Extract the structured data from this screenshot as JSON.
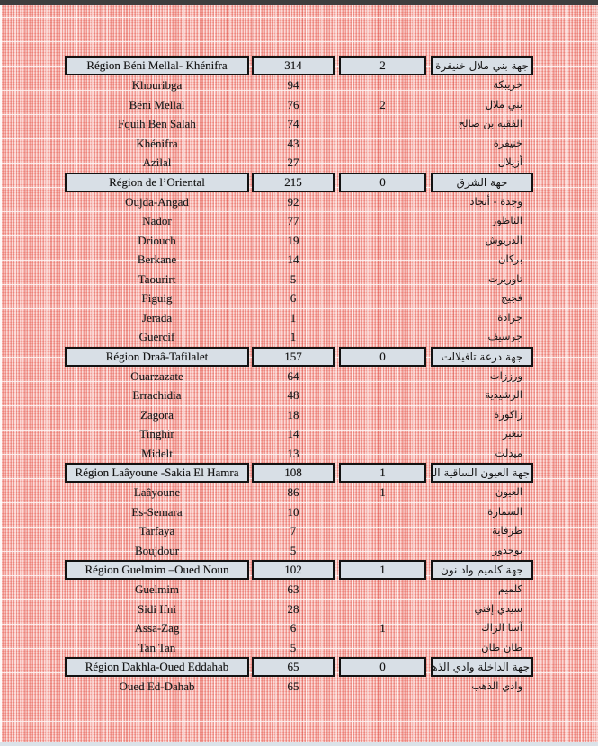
{
  "page": {
    "kind": "scanned statistics table page",
    "colors": {
      "pattern_pink": "#f4aba6",
      "pattern_red_line": "#d54338",
      "top_bar": "#3e3e3e",
      "bottom_bar": "#dbe3e9",
      "header_cell_fill": "#d8dfe6",
      "header_cell_border": "#121212",
      "text": "#1d1d1d"
    }
  },
  "table": {
    "sections": [
      {
        "region": {
          "name_fr": "Région Béni Mellal- Khénifra",
          "value1": "314",
          "value2": "2",
          "name_ar": "جهة بني ملال خنيفرة"
        },
        "rows": [
          {
            "name_fr": "Khouribga",
            "value1": "94",
            "value2": "",
            "name_ar": "خريبكة"
          },
          {
            "name_fr": "Béni Mellal",
            "value1": "76",
            "value2": "2",
            "name_ar": "بني ملال"
          },
          {
            "name_fr": "Fquih Ben Salah",
            "value1": "74",
            "value2": "",
            "name_ar": "الفقيه بن صالح"
          },
          {
            "name_fr": "Khénifra",
            "value1": "43",
            "value2": "",
            "name_ar": "خنيفرة"
          },
          {
            "name_fr": "Azilal",
            "value1": "27",
            "value2": "",
            "name_ar": "أزيلال"
          }
        ]
      },
      {
        "region": {
          "name_fr": "Région de l’Oriental",
          "value1": "215",
          "value2": "0",
          "name_ar": "جهة الشرق"
        },
        "rows": [
          {
            "name_fr": "Oujda-Angad",
            "value1": "92",
            "value2": "",
            "name_ar": "وجدة - أنجاد"
          },
          {
            "name_fr": "Nador",
            "value1": "77",
            "value2": "",
            "name_ar": "الناظور"
          },
          {
            "name_fr": "Driouch",
            "value1": "19",
            "value2": "",
            "name_ar": "الدريوش"
          },
          {
            "name_fr": "Berkane",
            "value1": "14",
            "value2": "",
            "name_ar": "بركان"
          },
          {
            "name_fr": "Taourirt",
            "value1": "5",
            "value2": "",
            "name_ar": "تاوريرت"
          },
          {
            "name_fr": "Figuig",
            "value1": "6",
            "value2": "",
            "name_ar": "فجيج"
          },
          {
            "name_fr": "Jerada",
            "value1": "1",
            "value2": "",
            "name_ar": "جرادة"
          },
          {
            "name_fr": "Guercif",
            "value1": "1",
            "value2": "",
            "name_ar": "جرسيف"
          }
        ]
      },
      {
        "region": {
          "name_fr": "Région Draâ-Tafilalet",
          "value1": "157",
          "value2": "0",
          "name_ar": "جهة درعة تافيلالت"
        },
        "rows": [
          {
            "name_fr": "Ouarzazate",
            "value1": "64",
            "value2": "",
            "name_ar": "ورززات"
          },
          {
            "name_fr": "Errachidia",
            "value1": "48",
            "value2": "",
            "name_ar": "الرشيدية"
          },
          {
            "name_fr": "Zagora",
            "value1": "18",
            "value2": "",
            "name_ar": "زاكورة"
          },
          {
            "name_fr": "Tinghir",
            "value1": "14",
            "value2": "",
            "name_ar": "تنغير"
          },
          {
            "name_fr": "Midelt",
            "value1": "13",
            "value2": "",
            "name_ar": "ميدلت"
          }
        ]
      },
      {
        "region": {
          "name_fr": "Région Laâyoune -Sakia El Hamra",
          "value1": "108",
          "value2": "1",
          "name_ar": "جهة العيون الساقية الحمراء"
        },
        "rows": [
          {
            "name_fr": "Laâyoune",
            "value1": "86",
            "value2": "1",
            "name_ar": "العيون"
          },
          {
            "name_fr": "Es-Semara",
            "value1": "10",
            "value2": "",
            "name_ar": "السمارة"
          },
          {
            "name_fr": "Tarfaya",
            "value1": "7",
            "value2": "",
            "name_ar": "طرفاية"
          },
          {
            "name_fr": "Boujdour",
            "value1": "5",
            "value2": "",
            "name_ar": "بوجدور"
          }
        ]
      },
      {
        "region": {
          "name_fr": "Région Guelmim –Oued Noun",
          "value1": "102",
          "value2": "1",
          "name_ar": "جهة كلميم واد نون"
        },
        "rows": [
          {
            "name_fr": "Guelmim",
            "value1": "63",
            "value2": "",
            "name_ar": "كلميم"
          },
          {
            "name_fr": "Sidi Ifni",
            "value1": "28",
            "value2": "",
            "name_ar": "سيدي إفني"
          },
          {
            "name_fr": "Assa-Zag",
            "value1": "6",
            "value2": "1",
            "name_ar": "آسا الزاك"
          },
          {
            "name_fr": "Tan Tan",
            "value1": "5",
            "value2": "",
            "name_ar": "طان طان"
          }
        ]
      },
      {
        "region": {
          "name_fr": "Région Dakhla-Oued Eddahab",
          "value1": "65",
          "value2": "0",
          "name_ar": "جهة الداخلة وادي الذهب"
        },
        "rows": [
          {
            "name_fr": "Oued Ed-Dahab",
            "value1": "65",
            "value2": "",
            "name_ar": "وادي الذهب"
          }
        ]
      }
    ]
  }
}
